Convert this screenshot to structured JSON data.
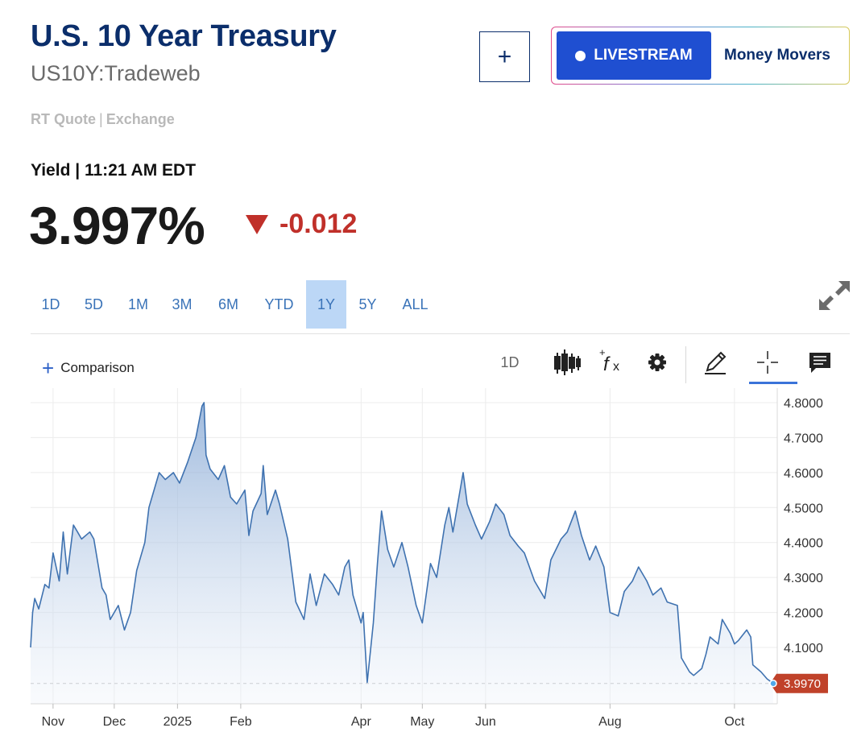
{
  "header": {
    "title": "U.S. 10 Year Treasury",
    "symbol": "US10Y:Tradeweb",
    "quote_type": "RT Quote",
    "quote_sep": "|",
    "quote_source": "Exchange",
    "add_label": "+",
    "livestream_label": "LIVESTREAM",
    "money_movers_label": "Money Movers"
  },
  "quote": {
    "label": "Yield | 11:21 AM EDT",
    "value": "3.997%",
    "change": "-0.012"
  },
  "ranges": [
    "1D",
    "5D",
    "1M",
    "3M",
    "6M",
    "YTD",
    "1Y",
    "5Y",
    "ALL"
  ],
  "active_range": "1Y",
  "toolbar": {
    "comparison_label": "Comparison",
    "interval_label": "1D",
    "icons": [
      "candlestick-icon",
      "formula-icon",
      "gear-icon",
      "pencil-icon",
      "crosshair-icon",
      "comment-icon"
    ]
  },
  "colors": {
    "brand": "#0b2e6b",
    "livestream": "#1f4fd1",
    "negative": "#c0302a",
    "line": "#3f72b0",
    "active_range": "#bcd7f6"
  },
  "chart_data": {
    "type": "area",
    "ylim": [
      3.98,
      4.82
    ],
    "yticks": [
      4.8,
      4.7,
      4.6,
      4.5,
      4.4,
      4.3,
      4.2,
      4.1
    ],
    "ytick_labels": [
      "4.8000",
      "4.7000",
      "4.6000",
      "4.5000",
      "4.4000",
      "4.3000",
      "4.2000",
      "4.1000"
    ],
    "x_labels": [
      "Nov",
      "Dec",
      "2025",
      "Feb",
      "Apr",
      "May",
      "Jun",
      "Aug",
      "Oct"
    ],
    "last_value": 3.997,
    "last_label": "3.9970",
    "grid": true,
    "points": [
      [
        "2024-10-21",
        4.1
      ],
      [
        "2024-10-22",
        4.2
      ],
      [
        "2024-10-23",
        4.24
      ],
      [
        "2024-10-25",
        4.21
      ],
      [
        "2024-10-28",
        4.28
      ],
      [
        "2024-10-30",
        4.27
      ],
      [
        "2024-11-01",
        4.37
      ],
      [
        "2024-11-04",
        4.29
      ],
      [
        "2024-11-06",
        4.43
      ],
      [
        "2024-11-08",
        4.31
      ],
      [
        "2024-11-11",
        4.45
      ],
      [
        "2024-11-13",
        4.43
      ],
      [
        "2024-11-15",
        4.41
      ],
      [
        "2024-11-19",
        4.43
      ],
      [
        "2024-11-21",
        4.41
      ],
      [
        "2024-11-25",
        4.27
      ],
      [
        "2024-11-27",
        4.25
      ],
      [
        "2024-11-29",
        4.18
      ],
      [
        "2024-12-03",
        4.22
      ],
      [
        "2024-12-06",
        4.15
      ],
      [
        "2024-12-09",
        4.2
      ],
      [
        "2024-12-12",
        4.32
      ],
      [
        "2024-12-16",
        4.4
      ],
      [
        "2024-12-18",
        4.5
      ],
      [
        "2024-12-20",
        4.54
      ],
      [
        "2024-12-23",
        4.6
      ],
      [
        "2024-12-26",
        4.58
      ],
      [
        "2024-12-30",
        4.6
      ],
      [
        "2025-01-02",
        4.57
      ],
      [
        "2025-01-06",
        4.63
      ],
      [
        "2025-01-10",
        4.7
      ],
      [
        "2025-01-13",
        4.79
      ],
      [
        "2025-01-14",
        4.8
      ],
      [
        "2025-01-15",
        4.65
      ],
      [
        "2025-01-17",
        4.61
      ],
      [
        "2025-01-21",
        4.58
      ],
      [
        "2025-01-24",
        4.62
      ],
      [
        "2025-01-27",
        4.53
      ],
      [
        "2025-01-30",
        4.51
      ],
      [
        "2025-02-03",
        4.55
      ],
      [
        "2025-02-05",
        4.42
      ],
      [
        "2025-02-07",
        4.49
      ],
      [
        "2025-02-11",
        4.54
      ],
      [
        "2025-02-12",
        4.62
      ],
      [
        "2025-02-14",
        4.48
      ],
      [
        "2025-02-18",
        4.55
      ],
      [
        "2025-02-20",
        4.51
      ],
      [
        "2025-02-24",
        4.41
      ],
      [
        "2025-02-28",
        4.23
      ],
      [
        "2025-03-04",
        4.18
      ],
      [
        "2025-03-07",
        4.31
      ],
      [
        "2025-03-10",
        4.22
      ],
      [
        "2025-03-14",
        4.31
      ],
      [
        "2025-03-18",
        4.28
      ],
      [
        "2025-03-21",
        4.25
      ],
      [
        "2025-03-24",
        4.33
      ],
      [
        "2025-03-26",
        4.35
      ],
      [
        "2025-03-28",
        4.25
      ],
      [
        "2025-04-01",
        4.17
      ],
      [
        "2025-04-02",
        4.2
      ],
      [
        "2025-04-04",
        4.0
      ],
      [
        "2025-04-07",
        4.17
      ],
      [
        "2025-04-09",
        4.34
      ],
      [
        "2025-04-11",
        4.49
      ],
      [
        "2025-04-14",
        4.38
      ],
      [
        "2025-04-17",
        4.33
      ],
      [
        "2025-04-21",
        4.4
      ],
      [
        "2025-04-24",
        4.33
      ],
      [
        "2025-04-28",
        4.22
      ],
      [
        "2025-05-01",
        4.17
      ],
      [
        "2025-05-05",
        4.34
      ],
      [
        "2025-05-08",
        4.3
      ],
      [
        "2025-05-12",
        4.45
      ],
      [
        "2025-05-14",
        4.5
      ],
      [
        "2025-05-16",
        4.43
      ],
      [
        "2025-05-21",
        4.6
      ],
      [
        "2025-05-23",
        4.51
      ],
      [
        "2025-05-27",
        4.45
      ],
      [
        "2025-05-30",
        4.41
      ],
      [
        "2025-06-03",
        4.46
      ],
      [
        "2025-06-06",
        4.51
      ],
      [
        "2025-06-10",
        4.48
      ],
      [
        "2025-06-13",
        4.42
      ],
      [
        "2025-06-17",
        4.39
      ],
      [
        "2025-06-20",
        4.37
      ],
      [
        "2025-06-25",
        4.29
      ],
      [
        "2025-06-30",
        4.24
      ],
      [
        "2025-07-03",
        4.35
      ],
      [
        "2025-07-08",
        4.41
      ],
      [
        "2025-07-11",
        4.43
      ],
      [
        "2025-07-15",
        4.49
      ],
      [
        "2025-07-18",
        4.42
      ],
      [
        "2025-07-22",
        4.35
      ],
      [
        "2025-07-25",
        4.39
      ],
      [
        "2025-07-29",
        4.33
      ],
      [
        "2025-08-01",
        4.2
      ],
      [
        "2025-08-05",
        4.19
      ],
      [
        "2025-08-08",
        4.26
      ],
      [
        "2025-08-12",
        4.29
      ],
      [
        "2025-08-15",
        4.33
      ],
      [
        "2025-08-19",
        4.29
      ],
      [
        "2025-08-22",
        4.25
      ],
      [
        "2025-08-26",
        4.27
      ],
      [
        "2025-08-29",
        4.23
      ],
      [
        "2025-09-03",
        4.22
      ],
      [
        "2025-09-05",
        4.07
      ],
      [
        "2025-09-09",
        4.03
      ],
      [
        "2025-09-11",
        4.02
      ],
      [
        "2025-09-15",
        4.04
      ],
      [
        "2025-09-17",
        4.08
      ],
      [
        "2025-09-19",
        4.13
      ],
      [
        "2025-09-23",
        4.11
      ],
      [
        "2025-09-25",
        4.18
      ],
      [
        "2025-09-29",
        4.14
      ],
      [
        "2025-10-01",
        4.11
      ],
      [
        "2025-10-03",
        4.12
      ],
      [
        "2025-10-07",
        4.15
      ],
      [
        "2025-10-09",
        4.13
      ],
      [
        "2025-10-10",
        4.05
      ],
      [
        "2025-10-14",
        4.03
      ],
      [
        "2025-10-17",
        4.01
      ],
      [
        "2025-10-20",
        3.997
      ]
    ]
  }
}
